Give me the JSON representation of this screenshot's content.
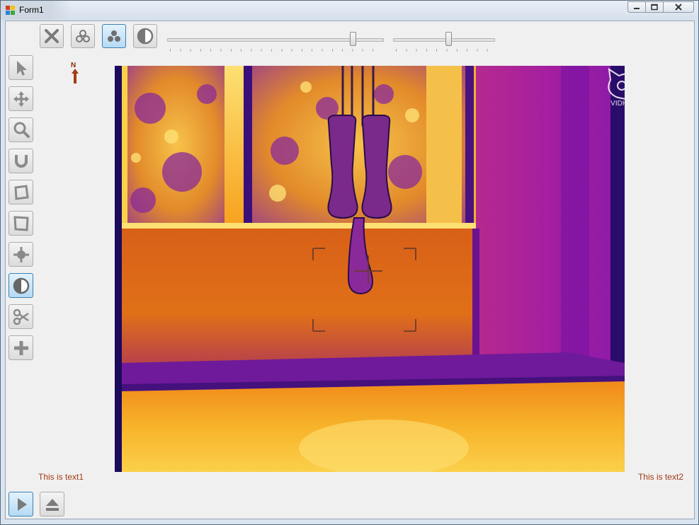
{
  "window": {
    "title": "Form1"
  },
  "toolbar": {
    "buttons": [
      {
        "icon": "close-x-icon",
        "active": false
      },
      {
        "icon": "three-circles-icon",
        "active": false
      },
      {
        "icon": "three-circles-filled-icon",
        "active": true
      },
      {
        "icon": "half-contrast-icon",
        "active": false
      }
    ],
    "slider1": {
      "value": 0.87
    },
    "slider2": {
      "value": 0.55
    }
  },
  "left_tools": [
    {
      "icon": "pointer-arrow-icon",
      "active": false
    },
    {
      "icon": "move-arrows-icon",
      "active": false
    },
    {
      "icon": "magnifier-icon",
      "active": false
    },
    {
      "icon": "magnet-icon",
      "active": false
    },
    {
      "icon": "rotate-square-icon",
      "active": false
    },
    {
      "icon": "skew-square-icon",
      "active": false
    },
    {
      "icon": "target-cross-icon",
      "active": false
    },
    {
      "icon": "half-contrast-icon",
      "active": true
    },
    {
      "icon": "scissors-icon",
      "active": false
    },
    {
      "icon": "plus-icon",
      "active": false
    }
  ],
  "compass": {
    "label": "N"
  },
  "image": {
    "watermark_logo": "VIDHANCE",
    "palette": [
      "#1c0a5c",
      "#7a1aa8",
      "#c2247a",
      "#e8641a",
      "#f7a21e",
      "#fde073"
    ]
  },
  "labels": {
    "text1": "This is text1",
    "text2": "This is text2"
  },
  "bottom_buttons": [
    {
      "icon": "play-icon",
      "active": true
    },
    {
      "icon": "eject-icon",
      "active": false
    }
  ]
}
